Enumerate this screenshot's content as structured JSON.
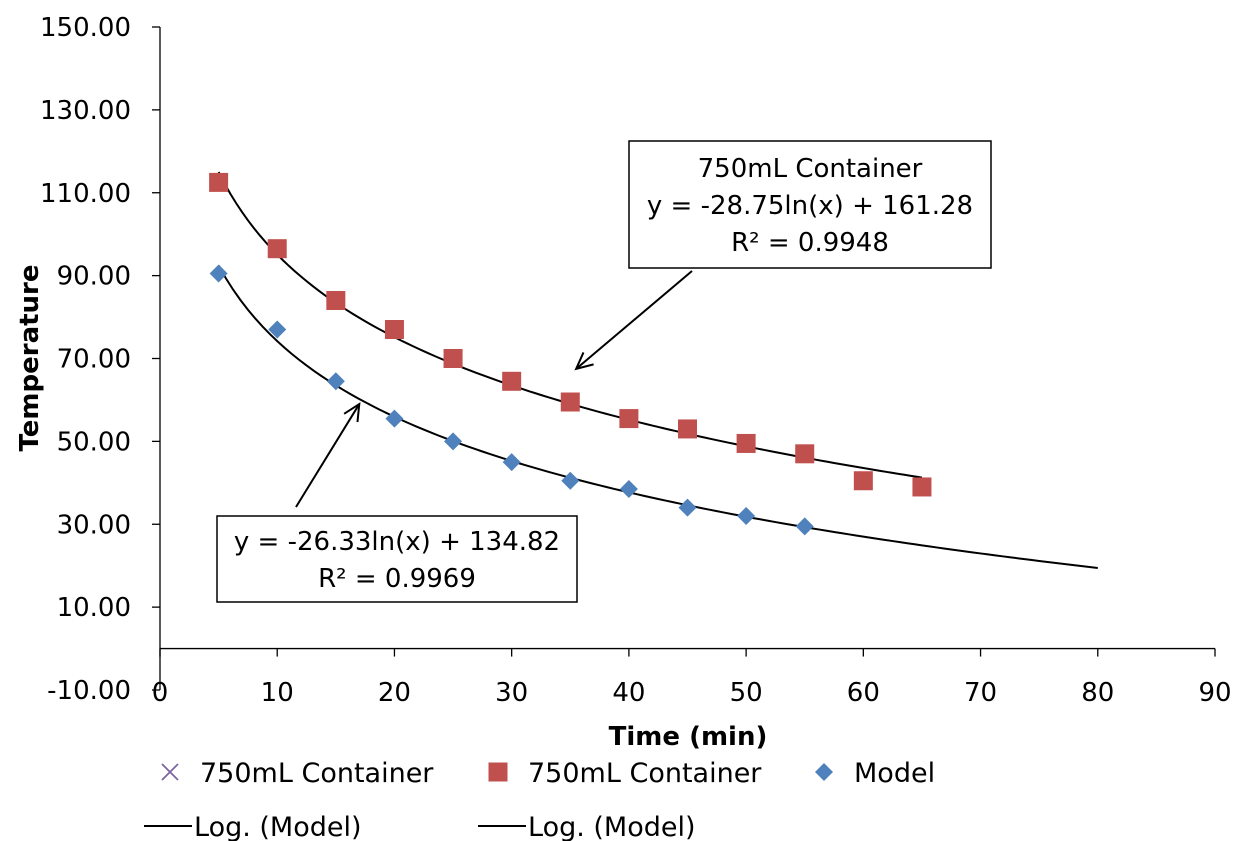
{
  "chart_data": {
    "type": "scatter",
    "xlabel": "Time (min)",
    "ylabel": "Temperature",
    "xlim": [
      0,
      90
    ],
    "ylim": [
      -10,
      150
    ],
    "x_ticks": [
      0,
      10,
      20,
      30,
      40,
      50,
      60,
      70,
      80,
      90
    ],
    "y_ticks": [
      -10,
      10,
      30,
      50,
      70,
      90,
      110,
      130,
      150
    ],
    "x_tick_labels": [
      "0",
      "10",
      "20",
      "30",
      "40",
      "50",
      "60",
      "70",
      "80",
      "90"
    ],
    "y_tick_labels": [
      "-10.00",
      "10.00",
      "30.00",
      "50.00",
      "70.00",
      "90.00",
      "110.00",
      "130.00",
      "150.00"
    ],
    "grid": false,
    "legend_position": "bottom",
    "series": [
      {
        "name": "750mL Container",
        "marker": "square",
        "color": "#c0504d",
        "x": [
          5,
          10,
          15,
          20,
          25,
          30,
          35,
          40,
          45,
          50,
          55,
          60,
          65
        ],
        "y": [
          112.5,
          96.5,
          84,
          77,
          70,
          64.5,
          59.5,
          55.5,
          53,
          49.5,
          47,
          40.5,
          39
        ]
      },
      {
        "name": "Model",
        "marker": "diamond",
        "color": "#4f81bd",
        "x": [
          5,
          10,
          15,
          20,
          25,
          30,
          35,
          40,
          45,
          50,
          55
        ],
        "y": [
          90.5,
          77,
          64.5,
          55.5,
          50,
          45,
          40.5,
          38.5,
          34,
          32,
          29.5
        ]
      }
    ],
    "trendlines": [
      {
        "type": "log",
        "a": -28.75,
        "b": 161.28,
        "x_range": [
          5,
          65
        ]
      },
      {
        "type": "log",
        "a": -26.33,
        "b": 134.82,
        "x_range": [
          5,
          80
        ]
      }
    ],
    "legend": [
      {
        "label": "750mL Container",
        "symbol": "cross",
        "color": "#8064a2"
      },
      {
        "label": "750mL Container",
        "symbol": "square",
        "color": "#c0504d"
      },
      {
        "label": "Model",
        "symbol": "diamond",
        "color": "#4f81bd"
      },
      {
        "label": "Log. (Model)",
        "symbol": "line",
        "color": "#000000"
      },
      {
        "label": "Log. (Model)",
        "symbol": "line",
        "color": "#000000"
      }
    ],
    "annotations": [
      {
        "lines": [
          "750mL Container",
          "y = -28.75ln(x) + 161.28",
          "R² = 0.9948"
        ],
        "arrow_to": [
          35.5,
          67.5
        ]
      },
      {
        "lines": [
          "y = -26.33ln(x) + 134.82",
          "R² = 0.9969"
        ],
        "arrow_to": [
          17,
          59
        ]
      }
    ]
  }
}
